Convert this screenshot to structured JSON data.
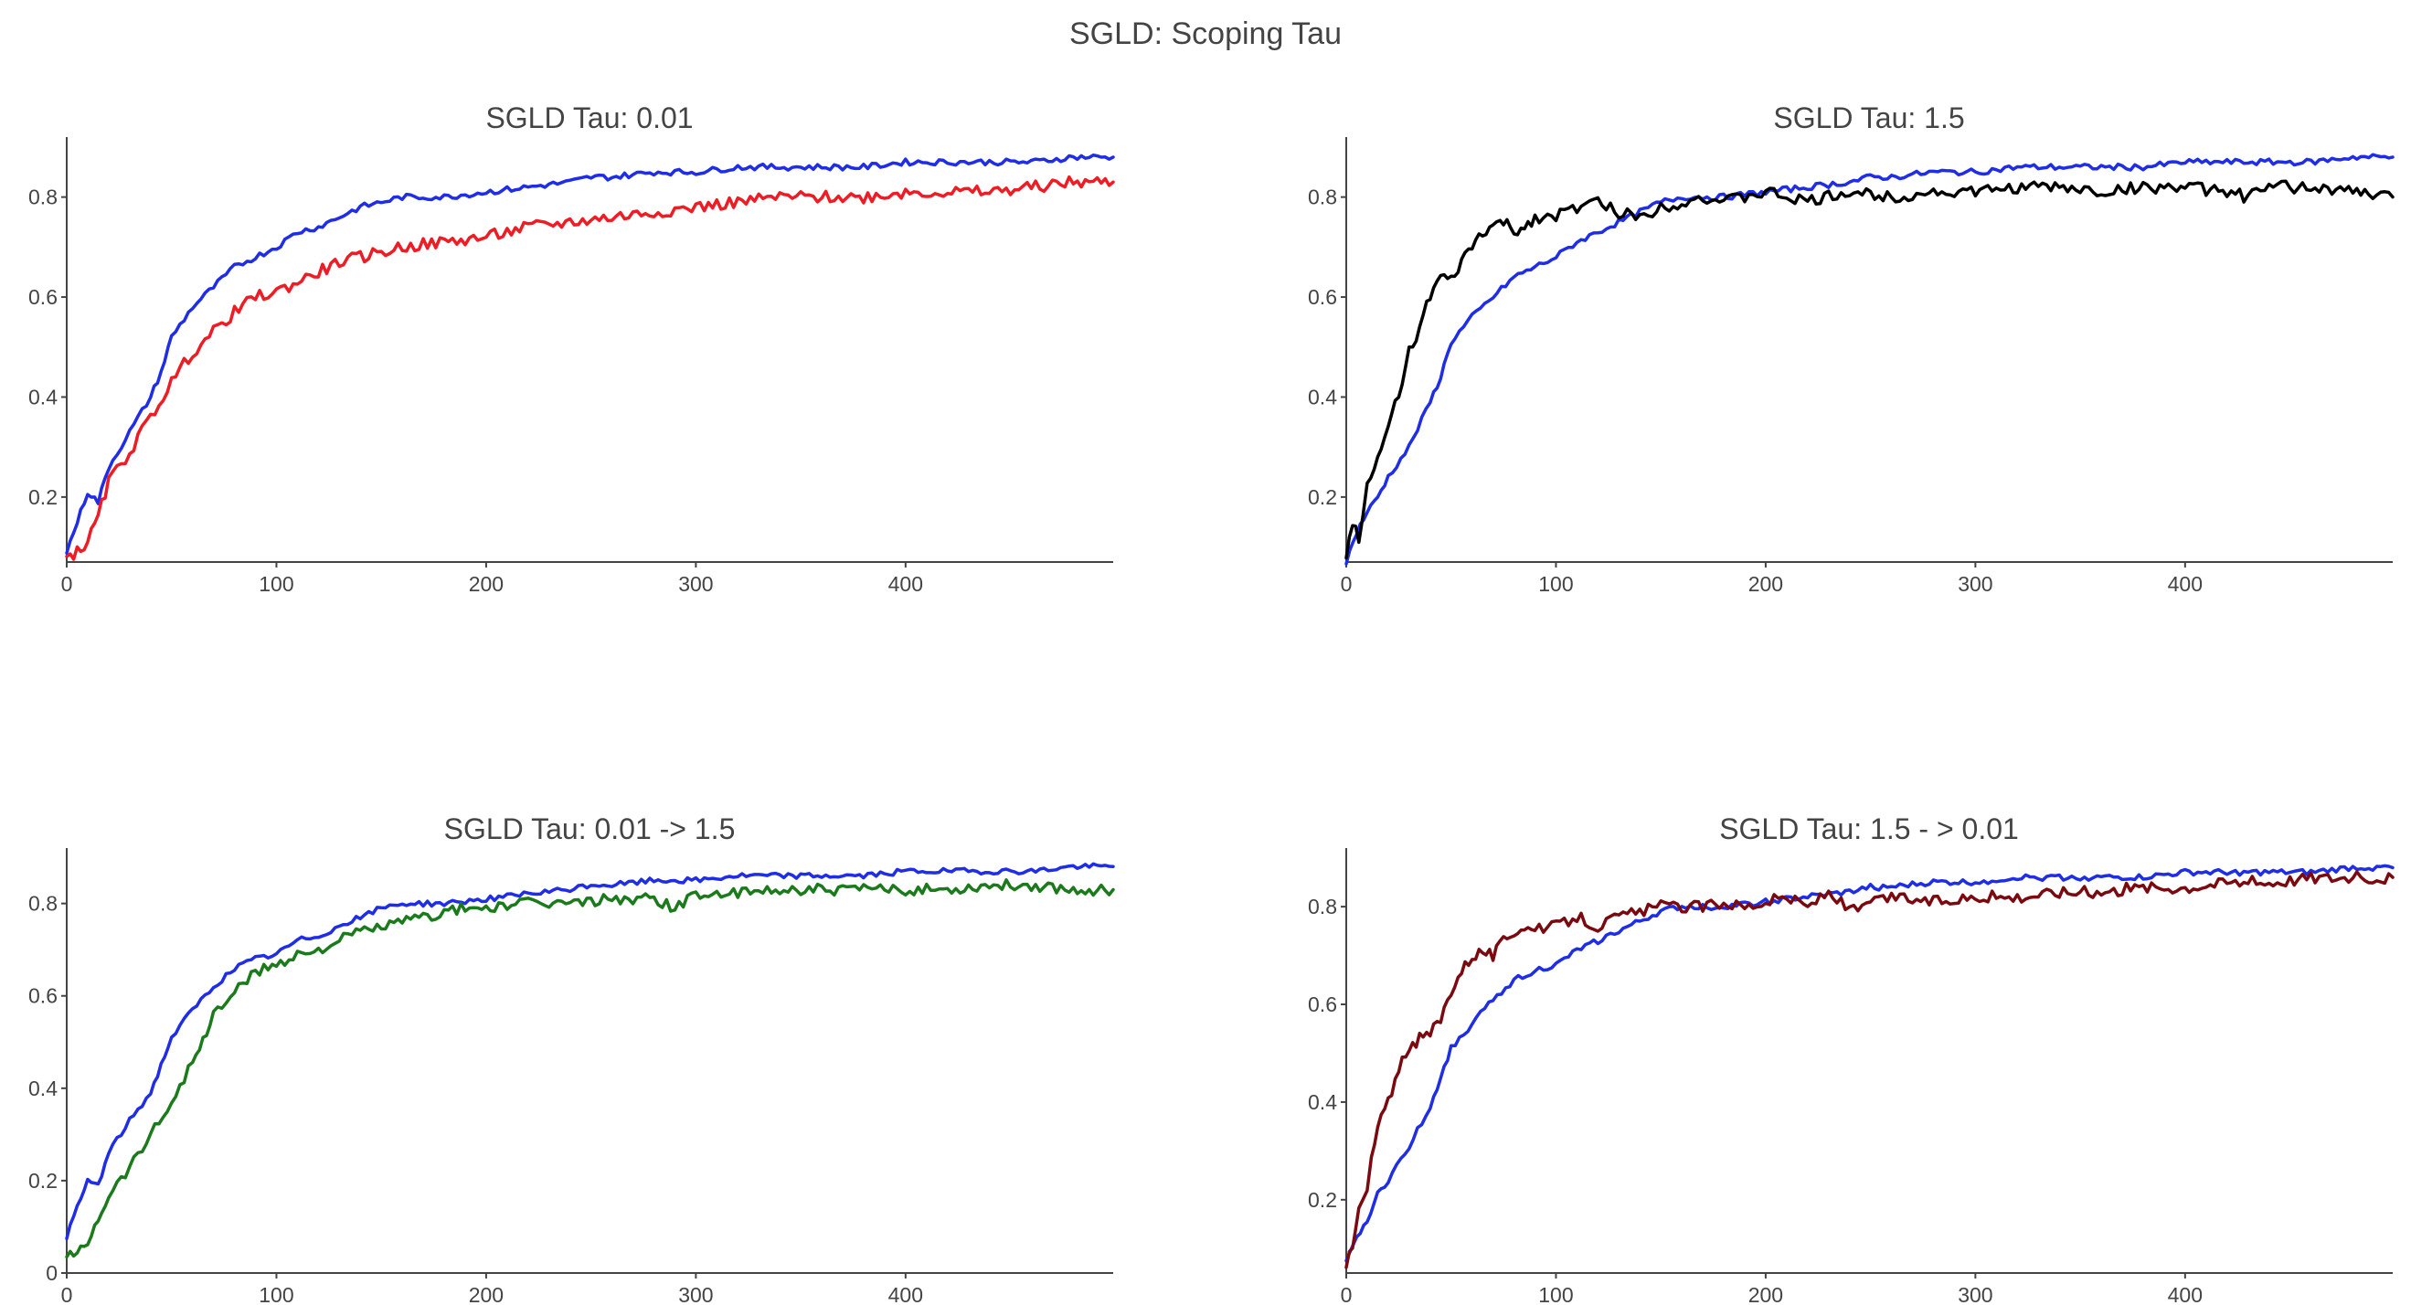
{
  "figure": {
    "title": "SGLD: Scoping Tau",
    "colors": {
      "text": "#444444",
      "axis": "#444444",
      "background": "#ffffff"
    }
  },
  "chart_data": [
    {
      "type": "line",
      "title": "SGLD Tau: 0.01",
      "xlabel": "",
      "ylabel": "",
      "xlim": [
        0,
        499
      ],
      "ylim": [
        0.07,
        0.92
      ],
      "xticks": [
        0,
        100,
        200,
        300,
        400
      ],
      "xtick_labels": [
        "0",
        "100",
        "200",
        "300",
        "400"
      ],
      "yticks": [
        0.2,
        0.4,
        0.6,
        0.8
      ],
      "ytick_labels": [
        "0.2",
        "0.4",
        "0.6",
        "0.8"
      ],
      "grid": false,
      "legend": "none",
      "series": [
        {
          "color": "#1f2ee6",
          "x": [
            0,
            5,
            10,
            15,
            20,
            30,
            40,
            45,
            50,
            60,
            70,
            80,
            90,
            100,
            110,
            120,
            130,
            140,
            150,
            160,
            170,
            180,
            200,
            220,
            240,
            250,
            260,
            280,
            300,
            320,
            340,
            360,
            380,
            400,
            420,
            440,
            460,
            480,
            499
          ],
          "y": [
            0.09,
            0.15,
            0.21,
            0.19,
            0.26,
            0.33,
            0.4,
            0.45,
            0.52,
            0.58,
            0.62,
            0.66,
            0.68,
            0.7,
            0.73,
            0.74,
            0.76,
            0.78,
            0.79,
            0.8,
            0.8,
            0.8,
            0.81,
            0.82,
            0.83,
            0.84,
            0.84,
            0.85,
            0.85,
            0.86,
            0.86,
            0.86,
            0.86,
            0.87,
            0.87,
            0.87,
            0.87,
            0.88,
            0.88
          ]
        },
        {
          "color": "#ee1c24",
          "x": [
            0,
            5,
            10,
            15,
            20,
            30,
            40,
            50,
            60,
            70,
            80,
            90,
            100,
            110,
            120,
            130,
            140,
            150,
            160,
            180,
            200,
            220,
            240,
            260,
            280,
            300,
            320,
            340,
            360,
            380,
            400,
            420,
            440,
            460,
            480,
            499
          ],
          "y": [
            0.08,
            0.09,
            0.11,
            0.16,
            0.23,
            0.29,
            0.36,
            0.43,
            0.49,
            0.53,
            0.57,
            0.6,
            0.61,
            0.63,
            0.65,
            0.67,
            0.68,
            0.69,
            0.7,
            0.71,
            0.72,
            0.74,
            0.75,
            0.76,
            0.77,
            0.78,
            0.79,
            0.8,
            0.8,
            0.8,
            0.81,
            0.81,
            0.81,
            0.82,
            0.83,
            0.83
          ]
        }
      ]
    },
    {
      "type": "line",
      "title": "SGLD Tau: 1.5",
      "xlabel": "",
      "ylabel": "",
      "xlim": [
        0,
        499
      ],
      "ylim": [
        0.07,
        0.92
      ],
      "xticks": [
        0,
        100,
        200,
        300,
        400
      ],
      "xtick_labels": [
        "0",
        "100",
        "200",
        "300",
        "400"
      ],
      "yticks": [
        0.2,
        0.4,
        0.6,
        0.8
      ],
      "ytick_labels": [
        "0.2",
        "0.4",
        "0.6",
        "0.8"
      ],
      "grid": false,
      "legend": "none",
      "series": [
        {
          "color": "#1f2ee6",
          "x": [
            0,
            5,
            10,
            15,
            20,
            30,
            40,
            45,
            50,
            60,
            70,
            80,
            90,
            100,
            110,
            120,
            130,
            140,
            150,
            160,
            170,
            180,
            200,
            220,
            240,
            250,
            260,
            280,
            300,
            320,
            340,
            360,
            380,
            400,
            420,
            440,
            460,
            480,
            499
          ],
          "y": [
            0.07,
            0.13,
            0.17,
            0.2,
            0.24,
            0.3,
            0.39,
            0.44,
            0.51,
            0.56,
            0.6,
            0.64,
            0.66,
            0.68,
            0.71,
            0.73,
            0.75,
            0.77,
            0.79,
            0.8,
            0.8,
            0.8,
            0.81,
            0.82,
            0.83,
            0.84,
            0.84,
            0.85,
            0.85,
            0.86,
            0.86,
            0.86,
            0.86,
            0.87,
            0.87,
            0.87,
            0.87,
            0.88,
            0.88
          ]
        },
        {
          "color": "#000000",
          "x": [
            0,
            3,
            6,
            10,
            15,
            20,
            25,
            30,
            35,
            40,
            45,
            50,
            55,
            60,
            65,
            70,
            75,
            80,
            85,
            90,
            100,
            110,
            120,
            130,
            140,
            150,
            160,
            170,
            180,
            190,
            200,
            210,
            220,
            240,
            260,
            280,
            300,
            320,
            340,
            360,
            380,
            400,
            420,
            430,
            440,
            460,
            480,
            499
          ],
          "y": [
            0.08,
            0.15,
            0.12,
            0.22,
            0.27,
            0.34,
            0.41,
            0.49,
            0.54,
            0.6,
            0.64,
            0.63,
            0.67,
            0.7,
            0.73,
            0.74,
            0.75,
            0.73,
            0.74,
            0.76,
            0.76,
            0.78,
            0.79,
            0.77,
            0.76,
            0.78,
            0.79,
            0.8,
            0.79,
            0.8,
            0.81,
            0.8,
            0.79,
            0.81,
            0.8,
            0.81,
            0.81,
            0.82,
            0.82,
            0.81,
            0.82,
            0.82,
            0.81,
            0.8,
            0.82,
            0.82,
            0.81,
            0.8
          ]
        }
      ]
    },
    {
      "type": "line",
      "title": "SGLD Tau: 0.01 -> 1.5",
      "xlabel": "",
      "ylabel": "",
      "xlim": [
        0,
        499
      ],
      "ylim": [
        0,
        0.92
      ],
      "xticks": [
        0,
        100,
        200,
        300,
        400
      ],
      "xtick_labels": [
        "0",
        "100",
        "200",
        "300",
        "400"
      ],
      "yticks": [
        0,
        0.2,
        0.4,
        0.6,
        0.8
      ],
      "ytick_labels": [
        "0",
        "0.2",
        "0.4",
        "0.6",
        "0.8"
      ],
      "grid": false,
      "legend": "none",
      "series": [
        {
          "color": "#1f2ee6",
          "x": [
            0,
            5,
            10,
            15,
            20,
            30,
            40,
            45,
            50,
            60,
            70,
            80,
            90,
            100,
            110,
            120,
            130,
            140,
            150,
            160,
            170,
            180,
            200,
            220,
            240,
            250,
            260,
            280,
            300,
            320,
            340,
            360,
            380,
            400,
            420,
            440,
            460,
            480,
            499
          ],
          "y": [
            0.08,
            0.14,
            0.2,
            0.19,
            0.26,
            0.33,
            0.39,
            0.45,
            0.51,
            0.57,
            0.62,
            0.66,
            0.68,
            0.69,
            0.72,
            0.73,
            0.75,
            0.77,
            0.79,
            0.8,
            0.8,
            0.8,
            0.81,
            0.82,
            0.83,
            0.84,
            0.84,
            0.85,
            0.85,
            0.86,
            0.86,
            0.86,
            0.86,
            0.87,
            0.87,
            0.87,
            0.87,
            0.88,
            0.88
          ]
        },
        {
          "color": "#1b7a1b",
          "x": [
            0,
            5,
            10,
            15,
            20,
            30,
            40,
            50,
            60,
            65,
            70,
            80,
            90,
            100,
            110,
            120,
            130,
            140,
            150,
            160,
            170,
            180,
            190,
            200,
            220,
            240,
            260,
            280,
            290,
            300,
            320,
            340,
            360,
            380,
            400,
            420,
            440,
            460,
            480,
            499
          ],
          "y": [
            0.04,
            0.04,
            0.07,
            0.12,
            0.17,
            0.23,
            0.3,
            0.37,
            0.46,
            0.5,
            0.56,
            0.61,
            0.65,
            0.67,
            0.69,
            0.7,
            0.72,
            0.74,
            0.75,
            0.76,
            0.77,
            0.78,
            0.79,
            0.79,
            0.8,
            0.8,
            0.81,
            0.81,
            0.79,
            0.82,
            0.82,
            0.83,
            0.83,
            0.83,
            0.83,
            0.83,
            0.84,
            0.84,
            0.83,
            0.83
          ]
        }
      ]
    },
    {
      "type": "line",
      "title": "SGLD Tau: 1.5 - > 0.01",
      "xlabel": "",
      "ylabel": "",
      "xlim": [
        0,
        499
      ],
      "ylim": [
        0.05,
        0.92
      ],
      "xticks": [
        0,
        100,
        200,
        300,
        400
      ],
      "xtick_labels": [
        "0",
        "100",
        "200",
        "300",
        "400"
      ],
      "yticks": [
        0.2,
        0.4,
        0.6,
        0.8
      ],
      "ytick_labels": [
        "0.2",
        "0.4",
        "0.6",
        "0.8"
      ],
      "grid": false,
      "legend": "none",
      "series": [
        {
          "color": "#1f2ee6",
          "x": [
            0,
            5,
            10,
            15,
            20,
            30,
            40,
            45,
            50,
            60,
            70,
            80,
            90,
            100,
            110,
            120,
            130,
            140,
            150,
            160,
            170,
            180,
            200,
            220,
            240,
            250,
            260,
            280,
            300,
            320,
            340,
            360,
            380,
            400,
            420,
            440,
            460,
            480,
            499
          ],
          "y": [
            0.07,
            0.12,
            0.16,
            0.21,
            0.24,
            0.31,
            0.39,
            0.45,
            0.51,
            0.56,
            0.61,
            0.65,
            0.67,
            0.68,
            0.71,
            0.73,
            0.75,
            0.77,
            0.79,
            0.8,
            0.8,
            0.8,
            0.81,
            0.82,
            0.83,
            0.84,
            0.84,
            0.85,
            0.85,
            0.86,
            0.86,
            0.86,
            0.86,
            0.87,
            0.87,
            0.87,
            0.87,
            0.88,
            0.88
          ]
        },
        {
          "color": "#7a0a0f",
          "x": [
            0,
            3,
            6,
            10,
            12,
            15,
            20,
            25,
            30,
            35,
            40,
            45,
            50,
            55,
            60,
            65,
            70,
            75,
            80,
            85,
            90,
            100,
            110,
            120,
            130,
            140,
            150,
            160,
            170,
            180,
            190,
            200,
            210,
            220,
            230,
            240,
            260,
            280,
            300,
            320,
            340,
            360,
            380,
            400,
            420,
            440,
            460,
            480,
            499
          ],
          "y": [
            0.07,
            0.1,
            0.18,
            0.22,
            0.28,
            0.35,
            0.4,
            0.47,
            0.5,
            0.53,
            0.54,
            0.57,
            0.63,
            0.67,
            0.7,
            0.71,
            0.7,
            0.73,
            0.75,
            0.76,
            0.75,
            0.76,
            0.78,
            0.76,
            0.78,
            0.79,
            0.8,
            0.8,
            0.8,
            0.81,
            0.8,
            0.81,
            0.82,
            0.8,
            0.83,
            0.79,
            0.82,
            0.81,
            0.82,
            0.82,
            0.83,
            0.83,
            0.84,
            0.84,
            0.85,
            0.85,
            0.86,
            0.86,
            0.86
          ]
        }
      ]
    }
  ]
}
